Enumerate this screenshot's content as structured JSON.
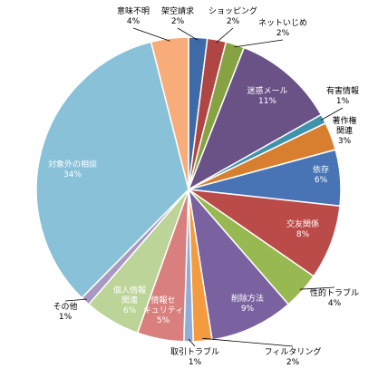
{
  "chart_data": {
    "type": "pie",
    "start_angle_deg": 0,
    "direction": "clockwise",
    "slices": [
      {
        "label": "架空請求",
        "pct_label": "2%",
        "value": 2,
        "color": "#3E6AA8"
      },
      {
        "label": "ショッピング",
        "pct_label": "2%",
        "value": 2,
        "color": "#B04643"
      },
      {
        "label": "ネットいじめ",
        "pct_label": "2%",
        "value": 2,
        "color": "#86A243"
      },
      {
        "label": "迷惑メール",
        "pct_label": "11%",
        "value": 11,
        "color": "#6A5186"
      },
      {
        "label": "有害情報",
        "pct_label": "1%",
        "value": 1,
        "color": "#3E93AB"
      },
      {
        "label": "著作権関連",
        "pct_label": "3%",
        "value": 3,
        "color": "#D87F2F"
      },
      {
        "label": "依存",
        "pct_label": "6%",
        "value": 6,
        "color": "#4874B5"
      },
      {
        "label": "交友関係",
        "pct_label": "8%",
        "value": 8,
        "color": "#BA4B48"
      },
      {
        "label": "性的トラブル",
        "pct_label": "4%",
        "value": 4,
        "color": "#98B851"
      },
      {
        "label": "削除方法",
        "pct_label": "9%",
        "value": 9,
        "color": "#7A62A1"
      },
      {
        "label": "フィルタリング",
        "pct_label": "2%",
        "value": 2,
        "color": "#F39B3E"
      },
      {
        "label": "取引トラブル",
        "pct_label": "1%",
        "value": 1,
        "color": "#91ADD7"
      },
      {
        "label": "情報セキュリティ",
        "pct_label": "5%",
        "value": 5,
        "color": "#D9807E"
      },
      {
        "label": "個人情報関連",
        "pct_label": "6%",
        "value": 6,
        "color": "#BCD497"
      },
      {
        "label": "その他",
        "pct_label": "1%",
        "value": 1,
        "color": "#A898C2"
      },
      {
        "label": "対象外の相談",
        "pct_label": "34%",
        "value": 34,
        "color": "#89C1D8"
      },
      {
        "label": "意味不明",
        "pct_label": "4%",
        "value": 4,
        "color": "#F7AC79"
      }
    ]
  }
}
